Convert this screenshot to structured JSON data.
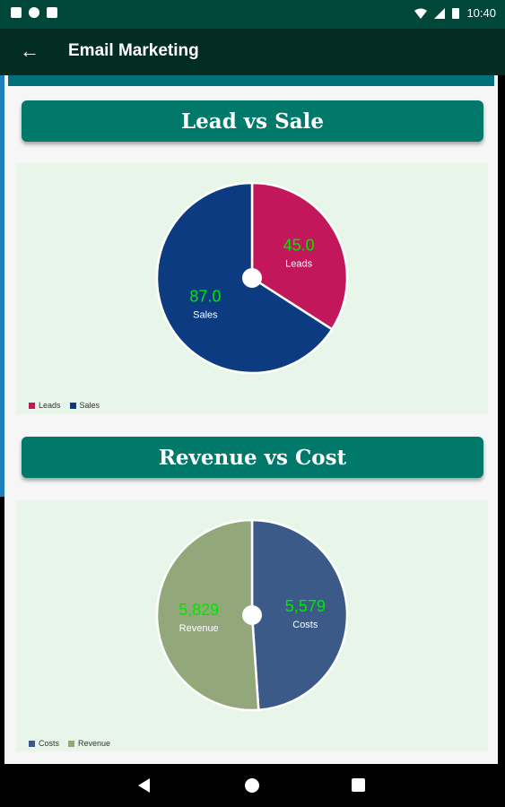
{
  "status_bar": {
    "time": "10:40"
  },
  "app_bar": {
    "title": "Email Marketing"
  },
  "sections": {
    "lead_vs_sale": {
      "title": "Lead vs Sale"
    },
    "revenue_vs_cost": {
      "title": "Revenue vs Cost"
    }
  },
  "chart_data": [
    {
      "type": "pie",
      "title": "Lead vs Sale",
      "slices": [
        {
          "label": "Leads",
          "value": 45.0,
          "display": "45.0",
          "color": "#c2185b"
        },
        {
          "label": "Sales",
          "value": 87.0,
          "display": "87.0",
          "color": "#0d3b82"
        }
      ],
      "legend": [
        "Leads",
        "Sales"
      ],
      "value_color": "#00e600"
    },
    {
      "type": "pie",
      "title": "Revenue vs Cost",
      "slices": [
        {
          "label": "Costs",
          "value": 5579,
          "display": "5,579",
          "color": "#3c5a87"
        },
        {
          "label": "Revenue",
          "value": 5829,
          "display": "5,829",
          "color": "#93a87a"
        }
      ],
      "legend": [
        "Costs",
        "Revenue"
      ],
      "value_color": "#00e600"
    }
  ]
}
